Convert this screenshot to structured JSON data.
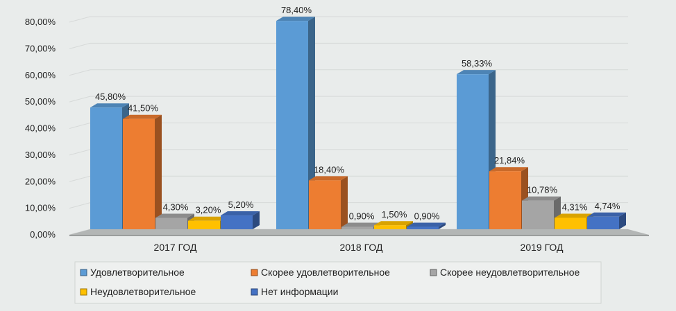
{
  "chart_data": {
    "type": "bar",
    "categories": [
      "2017 ГОД",
      "2018 ГОД",
      "2019 ГОД"
    ],
    "series": [
      {
        "name": "Удовлетворительное",
        "values": [
          45.8,
          78.4,
          58.33
        ],
        "labels": [
          "45,80%",
          "78,40%",
          "58,33%"
        ],
        "color": "#5b9bd5"
      },
      {
        "name": "Скорее удовлетворительное",
        "values": [
          41.5,
          18.4,
          21.84
        ],
        "labels": [
          "41,50%",
          "18,40%",
          "21,84%"
        ],
        "color": "#ed7d31"
      },
      {
        "name": "Скорее неудовлетворительное",
        "values": [
          4.3,
          0.9,
          10.78
        ],
        "labels": [
          "4,30%",
          "0,90%",
          "10,78%"
        ],
        "color": "#a5a5a5"
      },
      {
        "name": "Неудовлетворительное",
        "values": [
          3.2,
          1.5,
          4.31
        ],
        "labels": [
          "3,20%",
          "1,50%",
          "4,31%"
        ],
        "color": "#ffc000"
      },
      {
        "name": "Нет информации",
        "values": [
          5.2,
          0.9,
          4.74
        ],
        "labels": [
          "5,20%",
          "0,90%",
          "4,74%"
        ],
        "color": "#4472c4"
      }
    ],
    "ylim": [
      0,
      80
    ],
    "yticks": [
      "0,00%",
      "10,00%",
      "20,00%",
      "30,00%",
      "40,00%",
      "50,00%",
      "60,00%",
      "70,00%",
      "80,00%"
    ],
    "grid": true,
    "legend_position": "bottom"
  }
}
